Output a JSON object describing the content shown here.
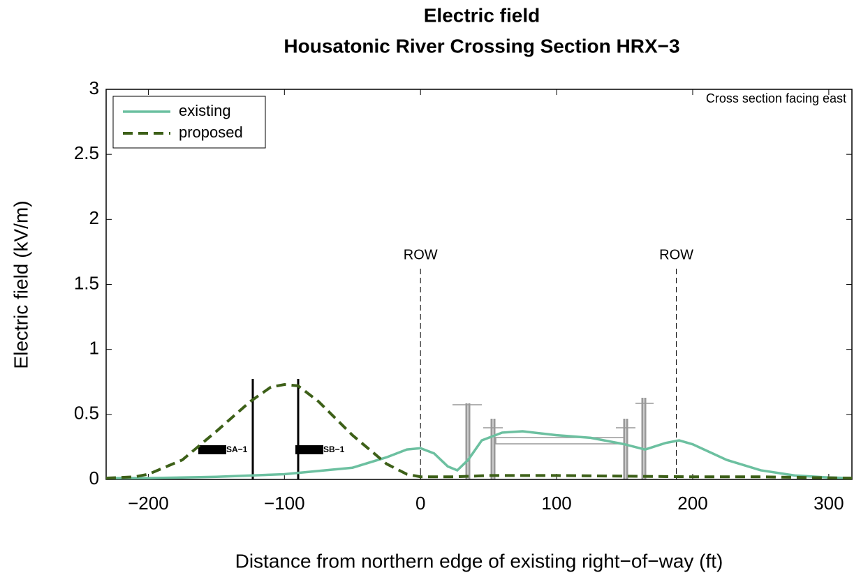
{
  "chart_data": {
    "type": "line",
    "title": "Electric field",
    "subtitle": "Housatonic River Crossing Section HRX−3",
    "x_label": "Distance from northern edge of existing right−of−way (ft)",
    "y_label": "Electric field (kV/m)",
    "note": "Cross section facing east",
    "xlim": [
      -231,
      317
    ],
    "ylim": [
      0,
      3
    ],
    "xticks": [
      {
        "value": -200,
        "label": "−200"
      },
      {
        "value": -100,
        "label": "−100"
      },
      0,
      100,
      200,
      300
    ],
    "yticks": [
      0,
      0.5,
      1,
      1.5,
      2,
      2.5,
      3
    ],
    "legend": "upper left",
    "grid": false,
    "annotations": [
      {
        "text": "ROW",
        "x": 0
      },
      {
        "text": "ROW",
        "x": 188
      }
    ],
    "structure_labels": [
      "SA−1",
      "SB−1"
    ],
    "series": [
      {
        "name": "existing",
        "color": "#6cc0a0",
        "dash": false,
        "x": [
          -231,
          -200,
          -150,
          -100,
          -50,
          -25,
          -10,
          0,
          10,
          20,
          27,
          35,
          45,
          60,
          75,
          100,
          125,
          150,
          165,
          180,
          190,
          200,
          225,
          250,
          275,
          300,
          317
        ],
        "values": [
          0.01,
          0.01,
          0.02,
          0.04,
          0.09,
          0.17,
          0.23,
          0.24,
          0.2,
          0.1,
          0.07,
          0.15,
          0.3,
          0.36,
          0.37,
          0.34,
          0.32,
          0.27,
          0.23,
          0.28,
          0.3,
          0.27,
          0.15,
          0.07,
          0.03,
          0.015,
          0.01
        ]
      },
      {
        "name": "proposed",
        "color": "#3d6018",
        "dash": true,
        "x": [
          -231,
          -210,
          -200,
          -175,
          -150,
          -125,
          -110,
          -100,
          -90,
          -75,
          -50,
          -25,
          -10,
          0,
          25,
          50,
          100,
          150,
          200,
          250,
          317
        ],
        "values": [
          0.01,
          0.02,
          0.04,
          0.15,
          0.37,
          0.6,
          0.71,
          0.73,
          0.72,
          0.6,
          0.34,
          0.12,
          0.04,
          0.02,
          0.02,
          0.03,
          0.03,
          0.025,
          0.02,
          0.02,
          0.01
        ]
      }
    ]
  }
}
